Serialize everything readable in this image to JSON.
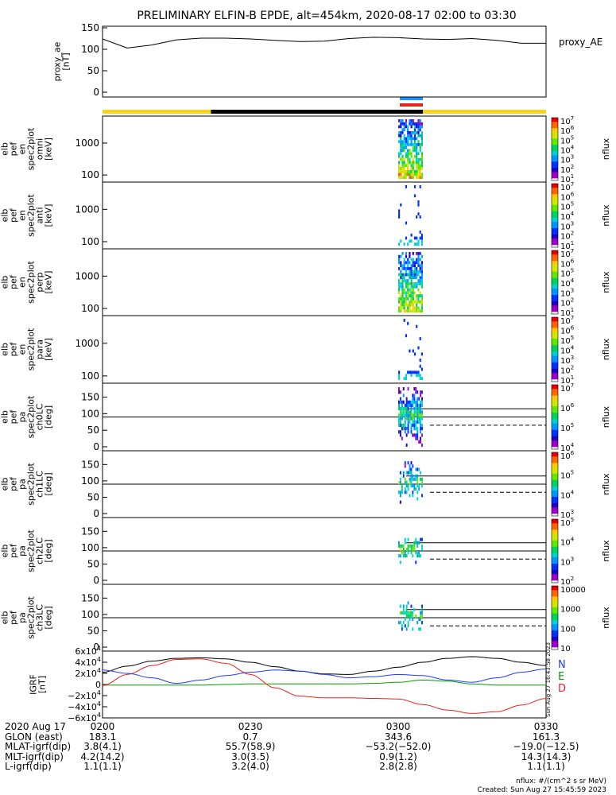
{
  "title": "PRELIMINARY ELFIN-B EPDE, alt=454km, 2020-08-17 02:00 to 03:30",
  "status_bar": {
    "segments": [
      {
        "from": "0200",
        "to": "0222",
        "color": "#f4d21e"
      },
      {
        "from": "0222",
        "to": "0305",
        "color": "#000000"
      },
      {
        "from": "0305",
        "to": "0330",
        "color": "#f4d21e"
      }
    ],
    "markers": [
      {
        "from": "0300",
        "to": "0305",
        "color": "#1e90ff"
      },
      {
        "from": "0300",
        "to": "0305",
        "color": "#e8231e"
      }
    ]
  },
  "chart_data": [
    {
      "type": "line",
      "panel": "proxy_ae",
      "ylabel_lines": [
        "proxy_ae",
        "[nT]"
      ],
      "legend": "proxy_AE",
      "ylim": [
        0,
        150
      ],
      "yticks": [
        "0",
        "50",
        "100",
        "150"
      ],
      "x": [
        "0200",
        "0205",
        "0210",
        "0215",
        "0220",
        "0225",
        "0230",
        "0235",
        "0240",
        "0245",
        "0250",
        "0255",
        "0300",
        "0305",
        "0310",
        "0315",
        "0320",
        "0325",
        "0330"
      ],
      "values": [
        124,
        103,
        110,
        122,
        126,
        126,
        124,
        121,
        118,
        119,
        125,
        128,
        127,
        124,
        123,
        125,
        121,
        114,
        114
      ]
    },
    {
      "type": "heatmap",
      "panel": "en_omni",
      "ylabel_lines": [
        "elb",
        "pef",
        "en",
        "spec2plot",
        "omni",
        "[keV]"
      ],
      "yscale": "log",
      "yticks": [
        "100",
        "1000"
      ],
      "colorbar": {
        "label": "nflux",
        "ticks": [
          "10^1",
          "10^2",
          "10^3",
          "10^4",
          "10^5",
          "10^6",
          "10^7"
        ]
      },
      "active_interval": [
        "0300",
        "0305"
      ]
    },
    {
      "type": "heatmap",
      "panel": "en_anti",
      "ylabel_lines": [
        "elb",
        "pef",
        "en",
        "spec2plot",
        "anti",
        "[keV]"
      ],
      "yscale": "log",
      "yticks": [
        "100",
        "1000"
      ],
      "colorbar": {
        "label": "nflux",
        "ticks": [
          "10^1",
          "10^2",
          "10^3",
          "10^4",
          "10^5",
          "10^6",
          "10^7"
        ]
      },
      "active_interval": [
        "0300",
        "0305"
      ]
    },
    {
      "type": "heatmap",
      "panel": "en_perp",
      "ylabel_lines": [
        "elb",
        "pef",
        "en",
        "spec2plot",
        "perp",
        "[keV]"
      ],
      "yscale": "log",
      "yticks": [
        "100",
        "1000"
      ],
      "colorbar": {
        "label": "nflux",
        "ticks": [
          "10^1",
          "10^2",
          "10^3",
          "10^4",
          "10^5",
          "10^6",
          "10^7"
        ]
      },
      "active_interval": [
        "0300",
        "0305"
      ]
    },
    {
      "type": "heatmap",
      "panel": "en_para",
      "ylabel_lines": [
        "elb",
        "pef",
        "en",
        "spec2plot",
        "para",
        "[keV]"
      ],
      "yscale": "log",
      "yticks": [
        "100",
        "1000"
      ],
      "colorbar": {
        "label": "nflux",
        "ticks": [
          "10^1",
          "10^2",
          "10^3",
          "10^4",
          "10^5",
          "10^6",
          "10^7"
        ]
      },
      "active_interval": [
        "0300",
        "0305"
      ]
    },
    {
      "type": "heatmap",
      "panel": "pa_ch0",
      "ylabel_lines": [
        "elb",
        "pef",
        "pa",
        "spec2plot",
        "ch0LC",
        "[deg]"
      ],
      "ylim": [
        0,
        180
      ],
      "yticks": [
        "0",
        "50",
        "100",
        "150"
      ],
      "colorbar": {
        "label": "nflux",
        "ticks": [
          "10^4",
          "10^5",
          "10^6",
          "10^7"
        ]
      },
      "active_interval": [
        "0300",
        "0305"
      ]
    },
    {
      "type": "heatmap",
      "panel": "pa_ch1",
      "ylabel_lines": [
        "elb",
        "pef",
        "pa",
        "spec2plot",
        "ch1LC",
        "[deg]"
      ],
      "ylim": [
        0,
        180
      ],
      "yticks": [
        "0",
        "50",
        "100",
        "150"
      ],
      "colorbar": {
        "label": "nflux",
        "ticks": [
          "10^3",
          "10^4",
          "10^5",
          "10^6"
        ]
      },
      "active_interval": [
        "0300",
        "0305"
      ]
    },
    {
      "type": "heatmap",
      "panel": "pa_ch2",
      "ylabel_lines": [
        "elb",
        "pef",
        "pa",
        "spec2plot",
        "ch2LC",
        "[deg]"
      ],
      "ylim": [
        0,
        180
      ],
      "yticks": [
        "0",
        "50",
        "100",
        "150"
      ],
      "colorbar": {
        "label": "nflux",
        "ticks": [
          "10^2",
          "10^3",
          "10^4",
          "10^5"
        ]
      },
      "active_interval": [
        "0300",
        "0305"
      ]
    },
    {
      "type": "heatmap",
      "panel": "pa_ch3",
      "ylabel_lines": [
        "elb",
        "pef",
        "pa",
        "spec2plot",
        "ch3LC",
        "[deg]"
      ],
      "ylim": [
        0,
        180
      ],
      "yticks": [
        "0",
        "50",
        "100",
        "150"
      ],
      "colorbar": {
        "label": "nflux",
        "ticks": [
          "10",
          "100",
          "1000",
          "10000"
        ]
      },
      "active_interval": [
        "0300",
        "0305"
      ]
    },
    {
      "type": "line",
      "panel": "igrf",
      "ylabel_lines": [
        "IGRF",
        "[nT]"
      ],
      "ylim": [
        -60000,
        60000
      ],
      "yticks": [
        "-6x10^4",
        "-4x10^4",
        "-2x10^4",
        "0",
        "2x10^4",
        "4x10^4",
        "6x10^4"
      ],
      "x": [
        "0200",
        "0205",
        "0210",
        "0215",
        "0220",
        "0225",
        "0230",
        "0235",
        "0240",
        "0245",
        "0250",
        "0255",
        "0300",
        "0305",
        "0310",
        "0315",
        "0320",
        "0325",
        "0330"
      ],
      "series": [
        {
          "name": "N",
          "color": "#000000",
          "values": [
            22000,
            33000,
            42000,
            47000,
            48000,
            46000,
            40000,
            32000,
            24000,
            19000,
            18000,
            24000,
            31000,
            40000,
            47000,
            50000,
            47000,
            40000,
            34000
          ]
        },
        {
          "name": "E",
          "color": "#00a000",
          "values": [
            -1000,
            -1000,
            -1000,
            -1000,
            -1000,
            0,
            1000,
            1000,
            1000,
            1000,
            1000,
            2000,
            4000,
            8000,
            6000,
            1000,
            -1000,
            -1000,
            -1000
          ]
        },
        {
          "name": "D",
          "color": "#e8231e",
          "values": [
            -2000,
            18000,
            34000,
            45000,
            46000,
            38000,
            18000,
            -6000,
            -21000,
            -24000,
            -24000,
            -25000,
            -26000,
            -36000,
            -46000,
            -52000,
            -49000,
            -37000,
            -25000
          ]
        },
        {
          "name": "",
          "color": "#1e3cff",
          "values": [
            26000,
            20000,
            12000,
            2000,
            8000,
            16000,
            22000,
            26000,
            24000,
            18000,
            12000,
            14000,
            18000,
            16000,
            8000,
            4000,
            12000,
            22000,
            28000
          ]
        }
      ],
      "side_note": "Sun Aug 27 16:43:58 2023"
    }
  ],
  "footer": {
    "labels": [
      "2020 Aug 17",
      "GLON (east)",
      "MLAT-igrf(dip)",
      "MLT-igrf(dip)",
      "L-igrf(dip)"
    ],
    "columns": [
      {
        "time": "0200",
        "glon": "183.1",
        "mlat": "3.8(4.1)",
        "mlt": "4.2(14.2)",
        "l": "1.1(1.1)"
      },
      {
        "time": "0230",
        "glon": "0.7",
        "mlat": "55.7(58.9)",
        "mlt": "3.0(3.5)",
        "l": "3.2(4.0)"
      },
      {
        "time": "0300",
        "glon": "343.6",
        "mlat": "−53.2(−52.0)",
        "mlt": "0.9(1.2)",
        "l": "2.8(2.8)"
      },
      {
        "time": "0330",
        "glon": "161.3",
        "mlat": "−19.0(−12.5)",
        "mlt": "14.3(14.3)",
        "l": "1.1(1.1)"
      }
    ],
    "unit_note": "nflux: #/(cm^2 s sr MeV)",
    "created": "Created: Sun Aug 27 15:45:59 2023"
  }
}
